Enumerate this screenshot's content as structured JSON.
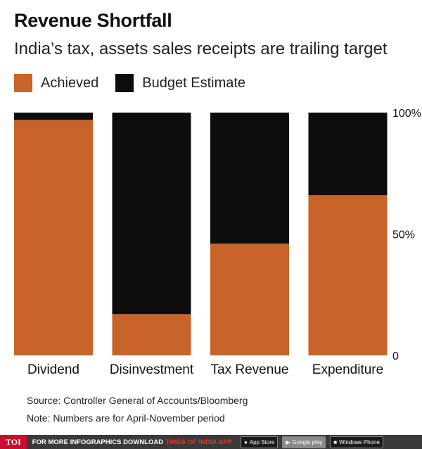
{
  "header": {
    "title": "Revenue Shortfall",
    "subtitle": "India’s tax, assets sales receipts are trailing target"
  },
  "legend": [
    {
      "label": "Achieved",
      "color": "#c8642a"
    },
    {
      "label": "Budget Estimate",
      "color": "#0d0d0d"
    }
  ],
  "chart_data": {
    "type": "bar",
    "stacked": "100%",
    "title": "Revenue Shortfall",
    "subtitle": "India’s tax, assets sales receipts are trailing target",
    "categories": [
      "Dividend",
      "Disinvestment",
      "Tax Revenue",
      "Expenditure"
    ],
    "series": [
      {
        "name": "Achieved",
        "color": "#c8642a",
        "values": [
          97,
          17,
          46,
          66
        ]
      },
      {
        "name": "Budget Estimate",
        "color": "#0d0d0d",
        "values": [
          3,
          83,
          54,
          34
        ]
      }
    ],
    "ylim": [
      0,
      100
    ],
    "yticks": [
      {
        "value": 100,
        "label": "100%"
      },
      {
        "value": 50,
        "label": "50%"
      },
      {
        "value": 0,
        "label": "0"
      }
    ],
    "xlabel": "",
    "ylabel": "",
    "grid": false
  },
  "notes": {
    "source": "Source: Controller General of Accounts/Bloomberg",
    "note": "Note: Numbers are for April-November period"
  },
  "footer": {
    "logo": "TOI",
    "text": "FOR MORE  INFOGRAPHICS DOWNLOAD",
    "app": "TIMES OF INDIA  APP",
    "badges": [
      {
        "label": "App Store",
        "icon": "apple-icon"
      },
      {
        "label": "Google play",
        "icon": "play-icon"
      },
      {
        "label": "Windows Phone",
        "icon": "windows-icon"
      }
    ]
  }
}
